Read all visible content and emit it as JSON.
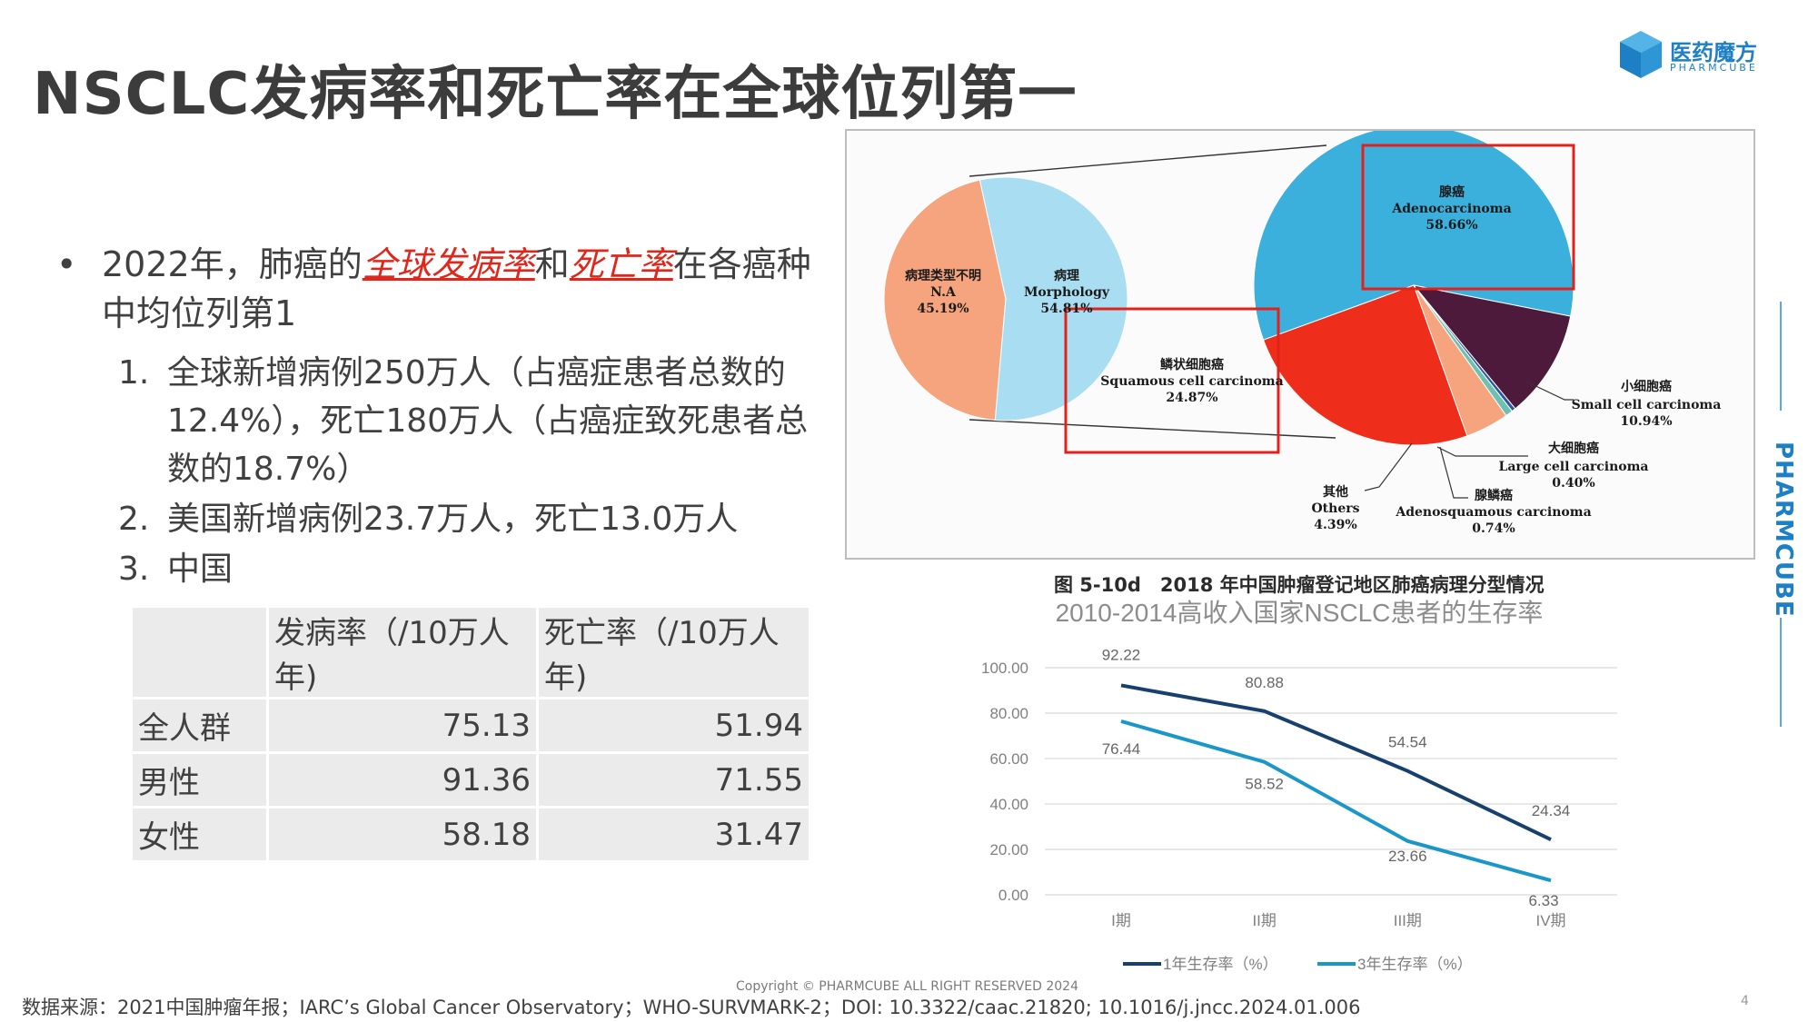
{
  "title": "NSCLC发病率和死亡率在全球位列第一",
  "logo": {
    "name_cn": "医药魔方",
    "name_en": "PHARMCUBE"
  },
  "side_brand": "PHARMCUBE",
  "bullets": {
    "dot": "•",
    "main_prefix": "2022年，肺癌的",
    "main_hl1": "全球发病率",
    "main_mid": "和",
    "main_hl2": "死亡率",
    "main_suffix": "在各癌种中均位列第1",
    "sub": [
      {
        "num": "1.",
        "text": "全球新增病例250万人（占癌症患者总数的12.4%），死亡180万人（占癌症致死患者总数的18.7%）"
      },
      {
        "num": "2.",
        "text": "美国新增病例23.7万人，死亡13.0万人"
      },
      {
        "num": "3.",
        "text": "中国"
      }
    ]
  },
  "table": {
    "headers": [
      "",
      "发病率（/10万人年)",
      "死亡率（/10万人年)"
    ],
    "rows": [
      [
        "全人群",
        "75.13",
        "51.94"
      ],
      [
        "男性",
        "91.36",
        "71.55"
      ],
      [
        "女性",
        "58.18",
        "31.47"
      ]
    ]
  },
  "chart_data": [
    {
      "type": "pie",
      "title": "",
      "caption": "图 5-10d　2018 年中国肿瘤登记地区肺癌病理分型情况",
      "slices": [
        {
          "label_cn": "病理类型不明",
          "label_en": "N.A",
          "value": 45.19,
          "color": "#f5a47e"
        },
        {
          "label_cn": "病理",
          "label_en": "Morphology",
          "value": 54.81,
          "color": "#a9def2"
        }
      ],
      "text_labels": {
        "na_cn": "病理类型不明",
        "na_en": "N.A",
        "na_pct": "45.19%",
        "morph_cn": "病理",
        "morph_en": "Morphology",
        "morph_pct": "54.81%"
      }
    },
    {
      "type": "pie",
      "title": "",
      "slices": [
        {
          "label_cn": "腺癌",
          "label_en": "Adenocarcinoma",
          "value": 58.66,
          "color": "#3bb0dc"
        },
        {
          "label_cn": "小细胞癌",
          "label_en": "Small cell carcinoma",
          "value": 10.94,
          "color": "#4e1a3c"
        },
        {
          "label_cn": "大细胞癌",
          "label_en": "Large cell carcinoma",
          "value": 0.4,
          "color": "#2b5aa0"
        },
        {
          "label_cn": "腺鳞癌",
          "label_en": "Adenosquamous carcinoma",
          "value": 0.74,
          "color": "#6fc0b0"
        },
        {
          "label_cn": "其他",
          "label_en": "Others",
          "value": 4.39,
          "color": "#f5a47e"
        },
        {
          "label_cn": "鳞状细胞癌",
          "label_en": "Squamous cell carcinoma",
          "value": 24.87,
          "color": "#ee2e1a"
        }
      ],
      "text_labels": {
        "adeno_cn": "腺癌",
        "adeno_en": "Adenocarcinoma",
        "adeno_pct": "58.66%",
        "sq_cn": "鳞状细胞癌",
        "sq_en": "Squamous cell carcinoma",
        "sq_pct": "24.87%",
        "sc_cn": "小细胞癌",
        "sc_en": "Small cell carcinoma",
        "sc_pct": "10.94%",
        "lc_cn": "大细胞癌",
        "lc_en": "Large cell carcinoma",
        "lc_pct": "0.40%",
        "as_cn": "腺鳞癌",
        "as_en": "Adenosquamous carcinoma",
        "as_pct": "0.74%",
        "oth_cn": "其他",
        "oth_en": "Others",
        "oth_pct": "4.39%"
      }
    },
    {
      "type": "line",
      "title": "2010-2014高收入国家NSCLC患者的生存率",
      "categories": [
        "I期",
        "II期",
        "III期",
        "IV期"
      ],
      "ylim": [
        0,
        100
      ],
      "yticks": [
        "0.00",
        "20.00",
        "40.00",
        "60.00",
        "80.00",
        "100.00"
      ],
      "grid": true,
      "legend_position": "bottom",
      "series": [
        {
          "name": "1年生存率（%）",
          "values": [
            92.22,
            80.88,
            54.54,
            24.34
          ],
          "labels": [
            "92.22",
            "80.88",
            "54.54",
            "24.34"
          ],
          "color": "#17406d"
        },
        {
          "name": "3年生存率（%）",
          "values": [
            76.44,
            58.52,
            23.66,
            6.33
          ],
          "labels": [
            "76.44",
            "58.52",
            "23.66",
            "6.33"
          ],
          "color": "#1a97c8"
        }
      ]
    }
  ],
  "source": "数据来源：2021中国肿瘤年报；IARC’s Global Cancer Observatory；WHO-SURVMARK-2；DOI: 10.3322/caac.21820; 10.1016/j.jncc.2024.01.006",
  "copyright": "Copyright © PHARMCUBE ALL RIGHT RESERVED 2024",
  "page_number": "4"
}
